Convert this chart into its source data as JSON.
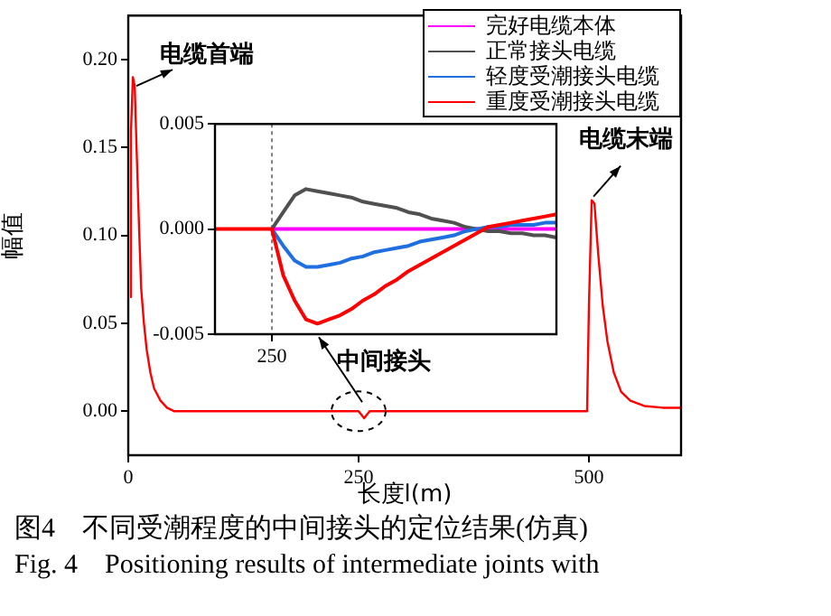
{
  "chart_data": [
    {
      "type": "line",
      "xlabel": "长度l(m)",
      "ylabel": "幅值",
      "xlim": [
        0,
        600
      ],
      "xticks": [
        0,
        250,
        500
      ],
      "ylim": [
        -0.025,
        0.225
      ],
      "yticks": [
        {
          "value": 0,
          "label": "0.00"
        },
        {
          "value": 0.05,
          "label": "0.05"
        },
        {
          "value": 0.1,
          "label": "0.10"
        },
        {
          "value": 0.15,
          "label": "0.15"
        },
        {
          "value": 0.2,
          "label": "0.20"
        }
      ],
      "legend": "top right",
      "marker": "none",
      "line_style": "solid",
      "series": [
        {
          "name": "完好电缆本体",
          "color": "#ff00ff"
        },
        {
          "name": "正常接头电缆",
          "color": "#505050"
        },
        {
          "name": "轻度受潮接头电缆",
          "color": "#1f6fe0"
        },
        {
          "name": "重度受潮接头电缆",
          "color": "#ff0000",
          "x": [
            2,
            3,
            5,
            7,
            9,
            12,
            14,
            17,
            20,
            24,
            28,
            35,
            42,
            50,
            245,
            250,
            256,
            262,
            400,
            498,
            500,
            503,
            506,
            510,
            515,
            520,
            527,
            535,
            545,
            560,
            580,
            600
          ],
          "values": [
            0.065,
            0.16,
            0.19,
            0.185,
            0.15,
            0.1,
            0.07,
            0.05,
            0.035,
            0.022,
            0.013,
            0.006,
            0.002,
            0,
            0,
            0,
            -0.004,
            0,
            0,
            0,
            0.06,
            0.12,
            0.118,
            0.09,
            0.06,
            0.04,
            0.022,
            0.011,
            0.006,
            0.003,
            0.002,
            0.002
          ]
        }
      ],
      "annotations": [
        {
          "text": "电缆首端",
          "x": 3,
          "y": 0.185
        },
        {
          "text": "电缆末端",
          "x": 505,
          "y": 0.12
        },
        {
          "text": "中间接头",
          "x": 250,
          "y": 0
        },
        "图4　不同受潮程度的中间接头的定位结果(仿真)",
        "Fig. 4　Positioning results of intermediate joints with"
      ]
    },
    {
      "type": "line",
      "categories": [
        null,
        null,
        null,
        null,
        null,
        "250",
        null,
        null,
        null,
        null,
        null,
        null,
        null,
        null,
        null,
        null,
        null,
        null,
        null,
        null,
        null,
        null,
        null,
        null,
        null,
        null,
        null,
        null,
        null,
        null,
        null
      ],
      "ylim": [
        -0.005,
        0.005
      ],
      "yticks": [
        {
          "value": -0.005,
          "label": "-0.005"
        },
        {
          "value": 0,
          "label": "0.000"
        },
        {
          "value": 0.005,
          "label": "0.005"
        }
      ],
      "marker": "none",
      "line_style": "solid",
      "ref_lines": [
        {
          "axis": "x",
          "value": "250",
          "color": "#808080",
          "line_style": "dotted"
        }
      ],
      "series": [
        {
          "color": "#ff00ff",
          "values": [
            null,
            null,
            null,
            null,
            null,
            0,
            0,
            0,
            0,
            0,
            0,
            0,
            0,
            0,
            0,
            0,
            0,
            0,
            0,
            0,
            0,
            0,
            0,
            0,
            0,
            0,
            0,
            0,
            0,
            0,
            0
          ]
        },
        {
          "color": "#505050",
          "values": [
            null,
            null,
            null,
            null,
            null,
            0,
            0.0008,
            0.0016,
            0.0019,
            0.0018,
            0.0017,
            0.0016,
            0.0015,
            0.0013,
            0.0012,
            0.0011,
            0.001,
            0.0008,
            0.0007,
            0.0005,
            0.0004,
            0.0003,
            0.0001,
            0,
            -0.0001,
            -0.0001,
            -0.0002,
            -0.0002,
            -0.0003,
            -0.0003,
            -0.0004
          ]
        },
        {
          "color": "#1f6fe0",
          "values": [
            null,
            null,
            null,
            null,
            null,
            0,
            -0.0008,
            -0.0015,
            -0.0018,
            -0.0018,
            -0.0017,
            -0.0016,
            -0.0014,
            -0.0013,
            -0.0011,
            -0.001,
            -0.0009,
            -0.0008,
            -0.0006,
            -0.0005,
            -0.0004,
            -0.0003,
            -0.0001,
            0,
            0.0001,
            0.0001,
            0.0002,
            0.0002,
            0.0002,
            0.0003,
            0.0003
          ]
        },
        {
          "color": "#ff0000",
          "values": [
            0,
            0,
            0,
            0,
            0,
            0,
            -0.0022,
            -0.0034,
            -0.0043,
            -0.0045,
            -0.0043,
            -0.0041,
            -0.0038,
            -0.0034,
            -0.0031,
            -0.0027,
            -0.0024,
            -0.002,
            -0.0017,
            -0.0014,
            -0.0011,
            -0.0008,
            -0.0005,
            -0.0002,
            0.0001,
            0.0002,
            0.0003,
            0.0004,
            0.0005,
            0.0006,
            0.0007
          ]
        }
      ]
    }
  ]
}
